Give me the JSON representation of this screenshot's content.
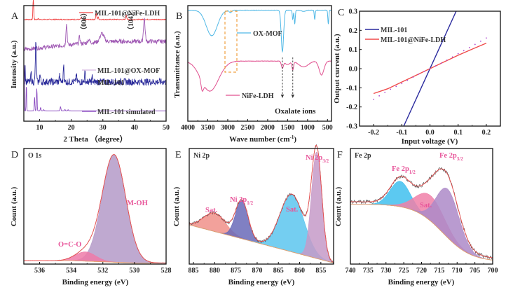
{
  "chart_data": [
    {
      "id": "A",
      "type": "line",
      "panel_label": "A",
      "xlabel": "2 Theta （degree）",
      "ylabel": "Intensity (a.u.)",
      "xlim": [
        5,
        50
      ],
      "xticks": [
        10,
        20,
        30,
        40,
        50
      ],
      "annotations": [
        "（006）",
        "（104）"
      ],
      "annotation_x": [
        23.2,
        37.6
      ],
      "series": [
        {
          "name": "MIL-101@NiFe-LDH",
          "color": "#f04040",
          "baseline": 0.88,
          "noise": 0.004,
          "peaks": [
            [
              8.0,
              0.2,
              0.12
            ],
            [
              23.2,
              0.015,
              0.2
            ],
            [
              27.9,
              0.05,
              0.15
            ],
            [
              28.5,
              0.02,
              0.15
            ],
            [
              37.4,
              0.04,
              0.15
            ],
            [
              9.5,
              0.01,
              0.1
            ]
          ]
        },
        {
          "name": "MIL-101@OX-MOF",
          "color": "#a05ab4",
          "baseline_start": 0.62,
          "baseline_end": 0.69,
          "noise": 0.018,
          "peaks": [
            [
              18.5,
              0.18,
              0.2
            ],
            [
              22.6,
              0.06,
              0.2
            ],
            [
              29.7,
              0.07,
              0.6
            ],
            [
              43.1,
              0.2,
              0.25
            ],
            [
              25.5,
              0.03,
              0.3
            ]
          ]
        },
        {
          "name": "MIL-101",
          "color": "#2b2b9a",
          "baseline": 0.34,
          "noise": 0.03,
          "peaks": [
            [
              8.8,
              0.34,
              0.15
            ],
            [
              7.3,
              0.08,
              0.12
            ],
            [
              10.1,
              0.06,
              0.15
            ],
            [
              16.3,
              0.06,
              0.12
            ],
            [
              17.6,
              0.16,
              0.12
            ],
            [
              21.6,
              0.07,
              0.12
            ],
            [
              24.3,
              0.08,
              0.15
            ],
            [
              26.6,
              0.05,
              0.12
            ],
            [
              5.4,
              0.14,
              0.08
            ]
          ]
        },
        {
          "name": "MIL-101 simulated",
          "color": "#8a4bc0",
          "baseline": 0.09,
          "noise": 0.0,
          "peaks": [
            [
              5.8,
              0.25,
              0.08
            ],
            [
              8.4,
              0.12,
              0.1
            ],
            [
              9.1,
              0.2,
              0.1
            ],
            [
              10.3,
              0.03,
              0.1
            ],
            [
              11.3,
              0.01,
              0.1
            ],
            [
              16.6,
              0.035,
              0.12
            ],
            [
              18.0,
              0.012,
              0.1
            ],
            [
              19.0,
              0.01,
              0.1
            ],
            [
              5.1,
              0.4,
              0.06
            ]
          ]
        }
      ]
    },
    {
      "id": "B",
      "type": "line",
      "panel_label": "B",
      "xlabel": "Wave number (cm⁻¹)",
      "ylabel": "Transmittance (a.u.)",
      "xlim": [
        4000,
        400
      ],
      "xticks": [
        4000,
        3500,
        3000,
        2500,
        2000,
        1500,
        1000,
        500
      ],
      "annotation": "Oxalate ions",
      "arrow_x": [
        1630,
        1370
      ],
      "highlight_box": [
        3080,
        2770
      ],
      "series": [
        {
          "name": "OX-MOF",
          "color": "#4fb8e6",
          "baseline": 0.96,
          "dips": [
            [
              3400,
              0.22,
              140
            ],
            [
              2930,
              0.02,
              30
            ],
            [
              1630,
              0.36,
              30
            ],
            [
              1370,
              0.08,
              12
            ],
            [
              1320,
              0.12,
              12
            ],
            [
              820,
              0.08,
              12
            ],
            [
              480,
              0.12,
              12
            ],
            [
              1100,
              0.01,
              50
            ]
          ]
        },
        {
          "name": "NiFe-LDH",
          "color": "#e0508f",
          "baseline": 0.52,
          "dips": [
            [
              3450,
              0.26,
              220
            ],
            [
              3640,
              0.08,
              30
            ],
            [
              1630,
              0.06,
              25
            ],
            [
              1370,
              0.07,
              20
            ],
            [
              1500,
              0.03,
              60
            ],
            [
              1100,
              0.05,
              120
            ],
            [
              650,
              0.12,
              60
            ]
          ]
        }
      ]
    },
    {
      "id": "C",
      "type": "line",
      "panel_label": "C",
      "xlabel": "Input voltage (V)",
      "ylabel": "Output current (a.u.)",
      "xlim": [
        -0.25,
        0.25
      ],
      "ylim": [
        -0.3,
        0.3
      ],
      "xticks": [
        -0.2,
        -0.1,
        0.0,
        0.1,
        0.2
      ],
      "yticks": [
        -0.3,
        -0.2,
        -0.1,
        0.0,
        0.1,
        0.2,
        0.3
      ],
      "series": [
        {
          "name": "MIL-101",
          "color": "#2a2a9e",
          "x": [
            -0.093,
            0.093
          ],
          "y": [
            -0.3,
            0.3
          ]
        },
        {
          "name": "MIL-101@NiFe-LDH",
          "color": "#f04a4a",
          "x": [
            -0.2,
            -0.15,
            -0.1,
            -0.05,
            0.0,
            0.05,
            0.1,
            0.15,
            0.2
          ],
          "y": [
            -0.13,
            -0.105,
            -0.07,
            -0.035,
            0.0,
            0.035,
            0.07,
            0.102,
            0.133
          ]
        },
        {
          "name": "dotted-fit",
          "color": "#b04ad0",
          "style": "dotted",
          "x": [
            -0.2,
            -0.15,
            -0.1,
            -0.05,
            0.0,
            0.05,
            0.1,
            0.15,
            0.2
          ],
          "y": [
            -0.16,
            -0.115,
            -0.078,
            -0.036,
            0.0,
            0.036,
            0.078,
            0.118,
            0.16
          ]
        }
      ]
    },
    {
      "id": "D",
      "type": "area",
      "panel_label": "D",
      "title": "O 1s",
      "xlabel": "Binding energy (eV)",
      "ylabel": "Count (a.u.)",
      "xlim": [
        537,
        528
      ],
      "xticks": [
        536,
        534,
        532,
        530,
        528
      ],
      "peaks": [
        {
          "name": "M-OH",
          "center": 531.3,
          "height": 0.93,
          "width": 0.75,
          "color": "#b49ac8"
        },
        {
          "name": "O=C-O",
          "center": 533.1,
          "height": 0.08,
          "width": 0.65,
          "color": "#ee7aa8"
        }
      ],
      "labels": [
        "M-OH",
        "O=C-O"
      ]
    },
    {
      "id": "E",
      "type": "area",
      "panel_label": "E",
      "title": "Ni 2p",
      "xlabel": "Binding energy (eV)",
      "ylabel": "Count (a.u.)",
      "xlim": [
        886,
        852
      ],
      "xticks": [
        885,
        880,
        875,
        870,
        865,
        860,
        855
      ],
      "background": [
        [
          885,
          0.33
        ],
        [
          852,
          0.0
        ]
      ],
      "peaks": [
        {
          "name": "Sat.",
          "center": 880.0,
          "height": 0.16,
          "width": 2.6,
          "color": "#f0908a"
        },
        {
          "name": "Ni 2p1/2",
          "center": 873.6,
          "height": 0.33,
          "width": 1.5,
          "color": "#6a6ab8"
        },
        {
          "name": "Sat.",
          "center": 861.8,
          "height": 0.5,
          "width": 2.8,
          "color": "#5cc6ee"
        },
        {
          "name": "Ni 2p3/2",
          "center": 856.0,
          "height": 0.92,
          "width": 1.2,
          "color": "#c69ac8"
        }
      ],
      "labels": [
        "Sat.",
        "Ni 2p",
        "1/2",
        "Sat.",
        "Ni 2p",
        "3/2"
      ]
    },
    {
      "id": "F",
      "type": "area",
      "panel_label": "F",
      "title": "Fe 2p",
      "xlabel": "Binding energy (eV)",
      "ylabel": "Count (a.u.)",
      "xlim": [
        740,
        700
      ],
      "xticks": [
        740,
        735,
        730,
        725,
        720,
        715,
        710,
        705,
        700
      ],
      "peaks": [
        {
          "name": "Fe 2p1/2",
          "center": 726.0,
          "height": 0.22,
          "width": 2.8,
          "color": "#40c0ee"
        },
        {
          "name": "Sat.",
          "center": 717.5,
          "height": 0.22,
          "width": 4.0,
          "color": "#f080a8"
        },
        {
          "name": "Fe 2p3/2",
          "center": 712.6,
          "height": 0.42,
          "width": 3.2,
          "color": "#ad8ac8"
        }
      ],
      "labels": [
        "Fe 2p",
        "1/2",
        "Sat.",
        "Fe 2p",
        "3/2"
      ]
    }
  ],
  "text": {
    "A": {
      "letter": "A",
      "xlabel": "2 Theta （degree）",
      "ylabel": "Intensity (a.u.)",
      "legend": [
        "MIL-101@NiFe-LDH",
        "MIL-101@OX-MOF",
        "MIL-101",
        "MIL-101 simulated"
      ],
      "anno1": "（006）",
      "anno2": "（104）",
      "ticks": [
        "10",
        "20",
        "30",
        "40",
        "50"
      ]
    },
    "B": {
      "letter": "B",
      "xlabel": "Wave number (cm",
      "xlabel_sup": "-1",
      "xlabel_end": ")",
      "ylabel": "Transmittance (a.u.)",
      "legend": [
        "OX-MOF",
        "NiFe-LDH"
      ],
      "anno": "Oxalate ions",
      "ticks": [
        "4000",
        "3500",
        "3000",
        "2500",
        "2000",
        "1500",
        "1000",
        "500"
      ]
    },
    "C": {
      "letter": "C",
      "xlabel": "Input voltage (V)",
      "ylabel": "Output current (a.u.)",
      "legend": [
        "MIL-101",
        "MIL-101@NiFe-LDH"
      ],
      "xticks": [
        "-0.2",
        "-0.1",
        "0.0",
        "0.1",
        "0.2"
      ],
      "yticks": [
        "-0.3",
        "-0.2",
        "-0.1",
        "0.0",
        "0.1",
        "0.2",
        "0.3"
      ]
    },
    "D": {
      "letter": "D",
      "title": "O 1s",
      "xlabel": "Binding energy (eV)",
      "ylabel": "Count (a.u.)",
      "l1": "M-OH",
      "l2": "O=C-O",
      "ticks": [
        "536",
        "534",
        "532",
        "530",
        "528"
      ]
    },
    "E": {
      "letter": "E",
      "title": "Ni 2p",
      "xlabel": "Binding energy (eV)",
      "ylabel": "Count (a.u.)",
      "sat": "Sat.",
      "ni": "Ni 2p",
      "half": "1/2",
      "threehalf": "3/2",
      "ticks": [
        "885",
        "880",
        "875",
        "870",
        "865",
        "860",
        "855"
      ]
    },
    "F": {
      "letter": "F",
      "title": "Fe 2p",
      "xlabel": "Binding energy (eV)",
      "ylabel": "Count (a.u.)",
      "sat": "Sat.",
      "fe": "Fe 2p",
      "half": "1/2",
      "threehalf": "3/2",
      "ticks": [
        "740",
        "735",
        "730",
        "725",
        "720",
        "715",
        "710",
        "705",
        "700"
      ]
    }
  }
}
